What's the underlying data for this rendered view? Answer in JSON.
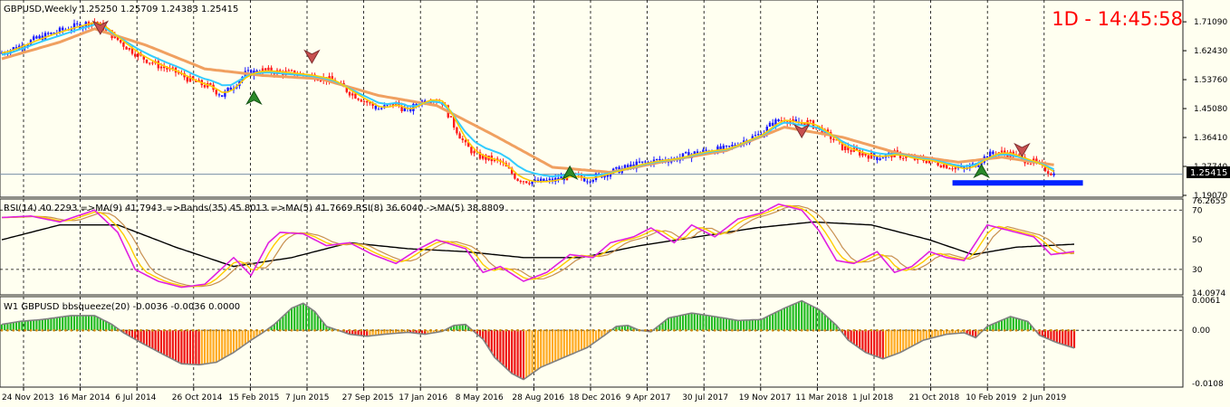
{
  "colors": {
    "background": "#fffff0",
    "bull_candle": "#1a1aff",
    "bear_candle": "#ff1a1a",
    "ma_fast": "#ffcc00",
    "ma_mid": "#33ccff",
    "ma_slow": "#f0a060",
    "rsi_line": "#e020e0",
    "rsi_ma": "#ffcc00",
    "rsi_ma2": "#c89050",
    "rsi_long": "#000000",
    "hist_green": "#22bb22",
    "hist_red": "#ee1111",
    "hist_orange": "#ffaa22",
    "support_line": "#0022ff",
    "timer": "#ff0000"
  },
  "header": {
    "symbol_title": "GBPUSD,Weekly  1.25250 1.25709 1.24383 1.25415",
    "timer": "1D - 14:45:58"
  },
  "price_panel": {
    "current_price": "1.25415"
  },
  "rsi_panel": {
    "title": "RSI(14) 40.2293  =>MA(9) 41.7943  =>Bands(35) 45.8013  =>MA(5) 41.7669  RSI(8) 36.6040  ->MA(5) 38.8809"
  },
  "bbsq_panel": {
    "title": "W1 GBPUSD bbsqueeze(20) -0.0036 -0.0036 0.0000"
  },
  "chart_data": [
    {
      "type": "candlestick",
      "title": "GBPUSD,Weekly  1.25250 1.25709 1.24383 1.25415",
      "y_ticks": [
        1.7109,
        1.6243,
        1.5376,
        1.4508,
        1.3641,
        1.2774,
        1.1907
      ],
      "y_tick_labels": [
        "1.71090",
        "1.62430",
        "1.53760",
        "1.45080",
        "1.36410",
        "1.27740",
        "1.19070"
      ],
      "ylim": [
        1.1907,
        1.76
      ],
      "current_price": 1.25415,
      "x_labels": [
        "24 Nov 2013",
        "16 Mar 2014",
        "6 Jul 2014",
        "26 Oct 2014",
        "15 Feb 2015",
        "7 Jun 2015",
        "27 Sep 2015",
        "17 Jan 2016",
        "8 May 2016",
        "28 Aug 2016",
        "18 Dec 2016",
        "9 Apr 2017",
        "30 Jul 2017",
        "19 Nov 2017",
        "11 Mar 2018",
        "1 Jul 2018",
        "21 Oct 2018",
        "10 Feb 2019",
        "2 Jun 2019"
      ],
      "close_path": [
        [
          0,
          1.618
        ],
        [
          6,
          1.638
        ],
        [
          12,
          1.66
        ],
        [
          18,
          1.678
        ],
        [
          24,
          1.694
        ],
        [
          32,
          1.712
        ],
        [
          36,
          1.686
        ],
        [
          42,
          1.642
        ],
        [
          48,
          1.605
        ],
        [
          54,
          1.58
        ],
        [
          60,
          1.56
        ],
        [
          66,
          1.532
        ],
        [
          72,
          1.515
        ],
        [
          76,
          1.49
        ],
        [
          80,
          1.52
        ],
        [
          84,
          1.555
        ],
        [
          90,
          1.565
        ],
        [
          96,
          1.56
        ],
        [
          102,
          1.555
        ],
        [
          108,
          1.548
        ],
        [
          114,
          1.535
        ],
        [
          120,
          1.5
        ],
        [
          126,
          1.47
        ],
        [
          130,
          1.45
        ],
        [
          136,
          1.465
        ],
        [
          140,
          1.442
        ],
        [
          144,
          1.47
        ],
        [
          148,
          1.48
        ],
        [
          152,
          1.47
        ],
        [
          156,
          1.4
        ],
        [
          160,
          1.34
        ],
        [
          164,
          1.31
        ],
        [
          168,
          1.3
        ],
        [
          172,
          1.29
        ],
        [
          178,
          1.24
        ],
        [
          184,
          1.23
        ],
        [
          190,
          1.235
        ],
        [
          196,
          1.25
        ],
        [
          202,
          1.24
        ],
        [
          208,
          1.255
        ],
        [
          214,
          1.27
        ],
        [
          220,
          1.285
        ],
        [
          226,
          1.295
        ],
        [
          232,
          1.3
        ],
        [
          238,
          1.315
        ],
        [
          244,
          1.325
        ],
        [
          250,
          1.33
        ],
        [
          256,
          1.355
        ],
        [
          262,
          1.375
        ],
        [
          266,
          1.408
        ],
        [
          270,
          1.42
        ],
        [
          274,
          1.405
        ],
        [
          278,
          1.41
        ],
        [
          282,
          1.39
        ],
        [
          286,
          1.365
        ],
        [
          290,
          1.335
        ],
        [
          296,
          1.318
        ],
        [
          302,
          1.305
        ],
        [
          308,
          1.315
        ],
        [
          314,
          1.3
        ],
        [
          320,
          1.295
        ],
        [
          326,
          1.28
        ],
        [
          332,
          1.268
        ],
        [
          336,
          1.285
        ],
        [
          340,
          1.31
        ],
        [
          344,
          1.32
        ],
        [
          348,
          1.315
        ],
        [
          352,
          1.3
        ],
        [
          356,
          1.29
        ],
        [
          360,
          1.27
        ],
        [
          363,
          1.254
        ]
      ],
      "ma_slow_path": [
        [
          0,
          1.6
        ],
        [
          20,
          1.65
        ],
        [
          32,
          1.69
        ],
        [
          50,
          1.64
        ],
        [
          70,
          1.57
        ],
        [
          90,
          1.55
        ],
        [
          110,
          1.54
        ],
        [
          130,
          1.49
        ],
        [
          150,
          1.46
        ],
        [
          170,
          1.37
        ],
        [
          190,
          1.275
        ],
        [
          210,
          1.26
        ],
        [
          230,
          1.295
        ],
        [
          250,
          1.325
        ],
        [
          270,
          1.395
        ],
        [
          290,
          1.365
        ],
        [
          310,
          1.315
        ],
        [
          330,
          1.29
        ],
        [
          345,
          1.305
        ],
        [
          363,
          1.282
        ]
      ],
      "markers": [
        {
          "type": "sell",
          "week": 34,
          "price": 1.712
        },
        {
          "type": "sell",
          "week": 107,
          "price": 1.625
        },
        {
          "type": "buy",
          "week": 87,
          "price": 1.465
        },
        {
          "type": "buy",
          "week": 196,
          "price": 1.24
        },
        {
          "type": "sell",
          "week": 276,
          "price": 1.402
        },
        {
          "type": "buy",
          "week": 338,
          "price": 1.245
        },
        {
          "type": "sell",
          "week": 352,
          "price": 1.345
        }
      ],
      "support_line": {
        "from_week": 328,
        "to_week": 373,
        "price": 1.228
      }
    },
    {
      "type": "line",
      "title": "RSI(14) 40.2293  =>MA(9) 41.7943  =>Bands(35) 45.8013  =>MA(5) 41.7669  RSI(8) 36.6040  ->MA(5) 38.8809",
      "y_ticks": [
        76.2655,
        70,
        50,
        30,
        14.0974
      ],
      "y_tick_labels": [
        "76.2655",
        "70",
        "50",
        "30",
        "14.0974"
      ],
      "ylim": [
        14.0974,
        76.2655
      ],
      "rsi_path": [
        [
          0,
          65
        ],
        [
          10,
          66
        ],
        [
          20,
          62
        ],
        [
          32,
          70
        ],
        [
          40,
          55
        ],
        [
          46,
          30
        ],
        [
          54,
          22
        ],
        [
          62,
          18
        ],
        [
          70,
          20
        ],
        [
          80,
          38
        ],
        [
          86,
          26
        ],
        [
          92,
          48
        ],
        [
          96,
          55
        ],
        [
          104,
          54
        ],
        [
          112,
          46
        ],
        [
          120,
          48
        ],
        [
          128,
          40
        ],
        [
          136,
          34
        ],
        [
          144,
          44
        ],
        [
          150,
          50
        ],
        [
          160,
          44
        ],
        [
          166,
          28
        ],
        [
          172,
          32
        ],
        [
          180,
          22
        ],
        [
          188,
          28
        ],
        [
          196,
          40
        ],
        [
          204,
          38
        ],
        [
          210,
          48
        ],
        [
          218,
          52
        ],
        [
          224,
          58
        ],
        [
          232,
          48
        ],
        [
          238,
          60
        ],
        [
          246,
          52
        ],
        [
          254,
          64
        ],
        [
          262,
          68
        ],
        [
          268,
          74
        ],
        [
          276,
          70
        ],
        [
          282,
          56
        ],
        [
          288,
          36
        ],
        [
          294,
          34
        ],
        [
          302,
          42
        ],
        [
          308,
          28
        ],
        [
          314,
          32
        ],
        [
          320,
          42
        ],
        [
          326,
          38
        ],
        [
          332,
          36
        ],
        [
          340,
          60
        ],
        [
          348,
          56
        ],
        [
          356,
          52
        ],
        [
          362,
          40
        ],
        [
          370,
          42
        ]
      ],
      "rsi_long_path": [
        [
          0,
          50
        ],
        [
          20,
          60
        ],
        [
          40,
          60
        ],
        [
          60,
          45
        ],
        [
          80,
          32
        ],
        [
          100,
          38
        ],
        [
          120,
          48
        ],
        [
          140,
          44
        ],
        [
          160,
          42
        ],
        [
          180,
          38
        ],
        [
          200,
          38
        ],
        [
          220,
          46
        ],
        [
          240,
          52
        ],
        [
          260,
          58
        ],
        [
          280,
          62
        ],
        [
          300,
          60
        ],
        [
          320,
          50
        ],
        [
          335,
          40
        ],
        [
          350,
          45
        ],
        [
          370,
          47
        ]
      ]
    },
    {
      "type": "bar",
      "title": "W1 GBPUSD bbsqueeze(20) -0.0036 -0.0036 0.0000",
      "y_ticks": [
        0.0061,
        0.0,
        -0.0108
      ],
      "y_tick_labels": [
        "0.0061",
        "0.00",
        "-0.0108"
      ],
      "ylim": [
        -0.0108,
        0.0061
      ],
      "hist_path": [
        [
          0,
          0.0012
        ],
        [
          6,
          0.0018
        ],
        [
          14,
          0.0022
        ],
        [
          24,
          0.003
        ],
        [
          32,
          0.003
        ],
        [
          38,
          0.0012
        ],
        [
          42,
          -0.0005
        ],
        [
          48,
          -0.0025
        ],
        [
          56,
          -0.005
        ],
        [
          62,
          -0.0068
        ],
        [
          68,
          -0.007
        ],
        [
          74,
          -0.0065
        ],
        [
          80,
          -0.0045
        ],
        [
          86,
          -0.002
        ],
        [
          90,
          -0.0005
        ],
        [
          94,
          0.0012
        ],
        [
          100,
          0.0045
        ],
        [
          104,
          0.0055
        ],
        [
          108,
          0.0038
        ],
        [
          112,
          0.0008
        ],
        [
          116,
          0.0
        ],
        [
          120,
          -0.0008
        ],
        [
          126,
          -0.0012
        ],
        [
          132,
          -0.0008
        ],
        [
          140,
          -0.0004
        ],
        [
          146,
          -0.0008
        ],
        [
          152,
          -0.0002
        ],
        [
          156,
          0.001
        ],
        [
          160,
          0.0012
        ],
        [
          166,
          -0.0018
        ],
        [
          170,
          -0.0055
        ],
        [
          176,
          -0.0088
        ],
        [
          180,
          -0.01
        ],
        [
          186,
          -0.0075
        ],
        [
          194,
          -0.0055
        ],
        [
          202,
          -0.0035
        ],
        [
          208,
          -0.001
        ],
        [
          212,
          0.0008
        ],
        [
          216,
          0.001
        ],
        [
          220,
          0.0
        ],
        [
          224,
          -0.0003
        ],
        [
          230,
          0.0025
        ],
        [
          238,
          0.0035
        ],
        [
          246,
          0.0028
        ],
        [
          254,
          0.002
        ],
        [
          262,
          0.0022
        ],
        [
          270,
          0.0045
        ],
        [
          276,
          0.006
        ],
        [
          282,
          0.0042
        ],
        [
          288,
          0.001
        ],
        [
          292,
          -0.002
        ],
        [
          298,
          -0.0045
        ],
        [
          304,
          -0.0058
        ],
        [
          310,
          -0.0045
        ],
        [
          318,
          -0.002
        ],
        [
          326,
          -0.0008
        ],
        [
          332,
          -0.0005
        ],
        [
          336,
          -0.0015
        ],
        [
          340,
          0.0008
        ],
        [
          348,
          0.0028
        ],
        [
          354,
          0.0018
        ],
        [
          358,
          -0.001
        ],
        [
          364,
          -0.0025
        ],
        [
          370,
          -0.0036
        ]
      ]
    }
  ]
}
